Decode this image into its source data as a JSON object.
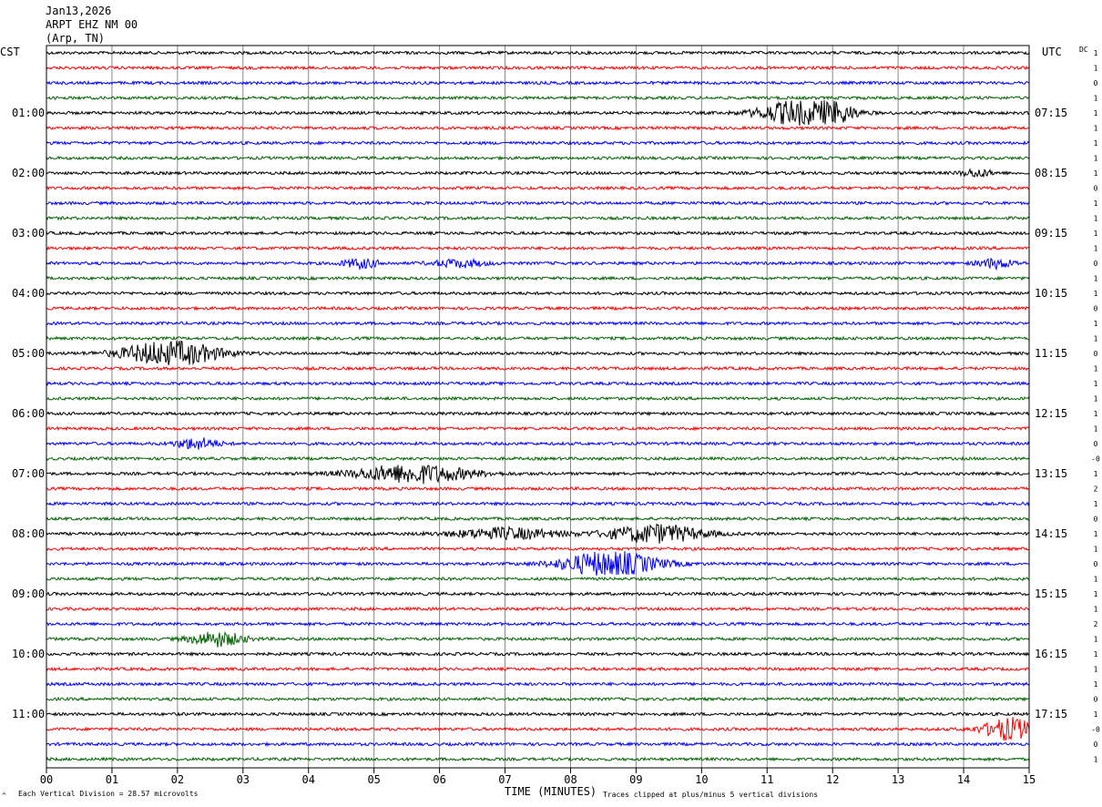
{
  "header": {
    "date": "Jan13,2026",
    "station": "ARPT EHZ NM 00",
    "location": "(Arp, TN)"
  },
  "left_zone_label": "CST",
  "right_zone_label": "UTC",
  "dc_label": "DC",
  "footer": {
    "scale_note": "Each Vertical Division =   28.57 microvolts",
    "x_title": "TIME (MINUTES)",
    "clip_note": "Traces clipped at plus/minus 5 vertical divisions",
    "corner_mark": "^"
  },
  "colors": {
    "line1": "#000000",
    "line2": "#ff0000",
    "line3": "#0000ff",
    "line4": "#006400"
  },
  "chart_data": {
    "type": "line",
    "x_ticks": [
      "00",
      "01",
      "02",
      "03",
      "04",
      "05",
      "06",
      "07",
      "08",
      "09",
      "10",
      "11",
      "12",
      "13",
      "14",
      "15"
    ],
    "xlim": [
      0,
      15
    ],
    "trace_count": 48,
    "color_cycle": [
      "#000000",
      "#ff0000",
      "#0000ff",
      "#006400"
    ],
    "left_hour_labels": [
      {
        "row": 4,
        "label": "01:00"
      },
      {
        "row": 8,
        "label": "02:00"
      },
      {
        "row": 12,
        "label": "03:00"
      },
      {
        "row": 16,
        "label": "04:00"
      },
      {
        "row": 20,
        "label": "05:00"
      },
      {
        "row": 24,
        "label": "06:00"
      },
      {
        "row": 28,
        "label": "07:00"
      },
      {
        "row": 32,
        "label": "08:00"
      },
      {
        "row": 36,
        "label": "09:00"
      },
      {
        "row": 40,
        "label": "10:00"
      },
      {
        "row": 44,
        "label": "11:00"
      }
    ],
    "right_hour_labels": [
      {
        "row": 4,
        "label": "07:15"
      },
      {
        "row": 8,
        "label": "08:15"
      },
      {
        "row": 12,
        "label": "09:15"
      },
      {
        "row": 16,
        "label": "10:15"
      },
      {
        "row": 20,
        "label": "11:15"
      },
      {
        "row": 24,
        "label": "12:15"
      },
      {
        "row": 28,
        "label": "13:15"
      },
      {
        "row": 32,
        "label": "14:15"
      },
      {
        "row": 36,
        "label": "15:15"
      },
      {
        "row": 40,
        "label": "16:15"
      },
      {
        "row": 44,
        "label": "17:15"
      }
    ],
    "dc_values": [
      "1",
      "1",
      "0",
      "1",
      "1",
      "1",
      "1",
      "1",
      "1",
      "0",
      "1",
      "1",
      "1",
      "1",
      "0",
      "1",
      "1",
      "0",
      "1",
      "1",
      "0",
      "1",
      "1",
      "1",
      "1",
      "1",
      "0",
      "-0",
      "1",
      "2",
      "1",
      "0",
      "1",
      "1",
      "0",
      "1",
      "1",
      "1",
      "2",
      "1",
      "1",
      "1",
      "1",
      "0",
      "1",
      "-0",
      "0",
      "1"
    ],
    "events": [
      {
        "row": 4,
        "minute": 11.5,
        "width": 1.5,
        "amp": 14
      },
      {
        "row": 4,
        "minute": 12.0,
        "width": 0.8,
        "amp": 9
      },
      {
        "row": 8,
        "minute": 14.2,
        "width": 0.6,
        "amp": 4
      },
      {
        "row": 14,
        "minute": 4.8,
        "width": 0.7,
        "amp": 5
      },
      {
        "row": 14,
        "minute": 6.3,
        "width": 1.0,
        "amp": 4
      },
      {
        "row": 14,
        "minute": 14.5,
        "width": 0.7,
        "amp": 5
      },
      {
        "row": 20,
        "minute": 1.9,
        "width": 1.8,
        "amp": 14
      },
      {
        "row": 26,
        "minute": 2.3,
        "width": 0.8,
        "amp": 6
      },
      {
        "row": 28,
        "minute": 5.6,
        "width": 2.2,
        "amp": 10
      },
      {
        "row": 32,
        "minute": 7.0,
        "width": 2.0,
        "amp": 6
      },
      {
        "row": 32,
        "minute": 9.3,
        "width": 1.8,
        "amp": 10
      },
      {
        "row": 34,
        "minute": 8.6,
        "width": 1.8,
        "amp": 14
      },
      {
        "row": 39,
        "minute": 2.6,
        "width": 1.0,
        "amp": 8
      },
      {
        "row": 45,
        "minute": 14.7,
        "width": 1.0,
        "amp": 12
      }
    ]
  }
}
